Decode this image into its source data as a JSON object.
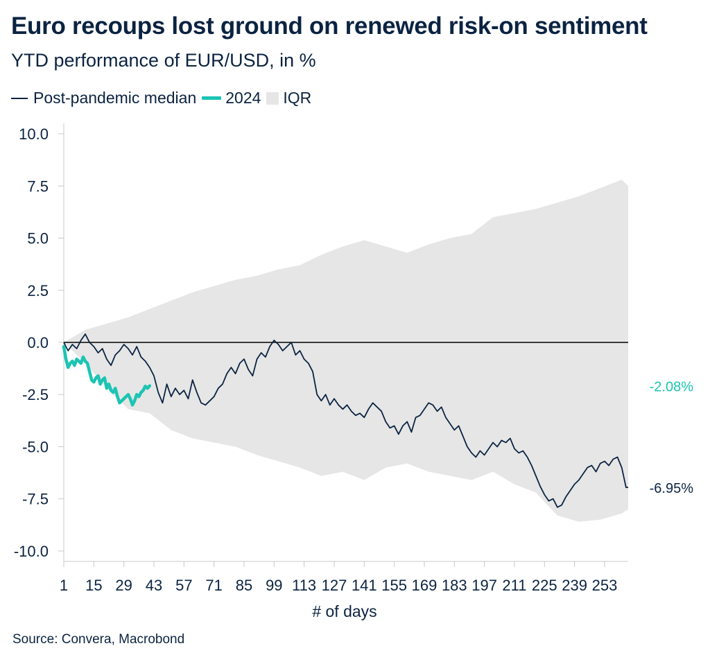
{
  "header": {
    "title": "Euro recoups lost ground on renewed risk-on sentiment",
    "subtitle": "YTD performance of EUR/USD, in %"
  },
  "legend": {
    "median_label": "Post-pandemic median",
    "ytd_label": "2024",
    "iqr_label": "IQR"
  },
  "footer": {
    "source": "Source: Convera, Macrobond"
  },
  "colors": {
    "median": "#0b2341",
    "ytd": "#1cc4b3",
    "iqr": "#e6e6e6",
    "axis": "#c8c8c8",
    "text": "#0b2341"
  },
  "chart_data": {
    "type": "line",
    "title": "Euro recoups lost ground on renewed risk-on sentiment",
    "subtitle": "YTD performance of EUR/USD, in %",
    "xlabel": "# of days",
    "ylabel": "",
    "xlim": [
      1,
      264
    ],
    "ylim": [
      -10.5,
      10.5
    ],
    "x_ticks": [
      1,
      15,
      29,
      43,
      57,
      71,
      85,
      99,
      113,
      127,
      141,
      155,
      169,
      183,
      197,
      211,
      225,
      239,
      253
    ],
    "y_ticks": [
      10.0,
      7.5,
      5.0,
      2.5,
      0.0,
      -2.5,
      -5.0,
      -7.5,
      -10.0
    ],
    "y_tick_labels": [
      "10.0",
      "7.5",
      "5.0",
      "2.5",
      "0.0",
      "-2.5",
      "-5.0",
      "-7.5",
      "-10.0"
    ],
    "zero_line": 0.0,
    "legend_position": "top-left",
    "series": [
      {
        "name": "Post-pandemic median",
        "x": [
          1,
          3,
          5,
          7,
          9,
          11,
          13,
          15,
          17,
          19,
          21,
          23,
          25,
          27,
          29,
          31,
          33,
          35,
          37,
          39,
          41,
          43,
          45,
          47,
          49,
          51,
          53,
          55,
          57,
          59,
          61,
          63,
          65,
          67,
          69,
          71,
          73,
          75,
          77,
          79,
          81,
          83,
          85,
          87,
          89,
          91,
          93,
          95,
          97,
          99,
          101,
          103,
          105,
          107,
          109,
          111,
          113,
          115,
          117,
          119,
          121,
          123,
          125,
          127,
          129,
          131,
          133,
          135,
          137,
          139,
          141,
          143,
          145,
          147,
          149,
          151,
          153,
          155,
          157,
          159,
          161,
          163,
          165,
          167,
          169,
          171,
          173,
          175,
          177,
          179,
          181,
          183,
          185,
          187,
          189,
          191,
          193,
          195,
          197,
          199,
          201,
          203,
          205,
          207,
          209,
          211,
          213,
          215,
          217,
          219,
          221,
          223,
          225,
          227,
          229,
          231,
          233,
          235,
          237,
          239,
          241,
          243,
          245,
          247,
          249,
          251,
          253,
          255,
          257,
          259,
          261,
          263,
          264
        ],
        "values": [
          0.0,
          -0.4,
          -0.1,
          -0.3,
          0.1,
          0.4,
          0.0,
          -0.2,
          -0.5,
          -0.3,
          -0.8,
          -1.1,
          -0.6,
          -0.4,
          -0.1,
          -0.3,
          -0.6,
          -0.2,
          -0.7,
          -0.9,
          -1.2,
          -1.6,
          -2.4,
          -2.9,
          -2.0,
          -2.6,
          -2.2,
          -2.5,
          -2.3,
          -2.7,
          -1.8,
          -2.4,
          -2.9,
          -3.0,
          -2.8,
          -2.6,
          -2.2,
          -2.0,
          -1.5,
          -1.2,
          -1.5,
          -1.0,
          -0.8,
          -1.3,
          -1.6,
          -0.8,
          -0.5,
          -0.7,
          -0.2,
          0.1,
          -0.1,
          -0.4,
          -0.2,
          0.0,
          -0.6,
          -0.4,
          -0.8,
          -1.0,
          -1.4,
          -2.5,
          -2.8,
          -2.5,
          -3.0,
          -2.7,
          -3.0,
          -3.2,
          -3.0,
          -3.3,
          -3.5,
          -3.4,
          -3.6,
          -3.2,
          -2.9,
          -3.1,
          -3.3,
          -3.8,
          -4.1,
          -4.0,
          -4.4,
          -4.0,
          -3.8,
          -4.3,
          -3.6,
          -3.5,
          -3.2,
          -2.9,
          -3.0,
          -3.3,
          -3.1,
          -3.6,
          -3.9,
          -4.2,
          -4.0,
          -4.5,
          -5.0,
          -5.3,
          -5.5,
          -5.2,
          -5.4,
          -5.1,
          -4.8,
          -5.0,
          -4.7,
          -4.8,
          -4.6,
          -5.1,
          -5.3,
          -5.2,
          -5.5,
          -5.9,
          -6.4,
          -6.9,
          -7.3,
          -7.6,
          -7.5,
          -7.9,
          -7.8,
          -7.4,
          -7.1,
          -6.8,
          -6.6,
          -6.3,
          -6.0,
          -5.9,
          -6.2,
          -5.8,
          -5.7,
          -5.9,
          -5.6,
          -5.5,
          -6.0,
          -6.95,
          -6.95
        ]
      },
      {
        "name": "2024",
        "x": [
          1,
          2,
          3,
          4,
          5,
          6,
          7,
          8,
          9,
          10,
          11,
          12,
          13,
          14,
          15,
          16,
          17,
          18,
          19,
          20,
          21,
          22,
          23,
          24,
          25,
          26,
          27,
          28,
          29,
          30,
          31,
          32,
          33,
          34,
          35,
          36,
          37,
          38,
          39,
          40,
          41
        ],
        "values": [
          -0.2,
          -0.8,
          -1.2,
          -1.0,
          -0.9,
          -1.1,
          -0.8,
          -0.9,
          -1.0,
          -0.7,
          -0.9,
          -1.0,
          -1.4,
          -1.8,
          -1.9,
          -1.7,
          -1.6,
          -2.0,
          -1.8,
          -1.7,
          -2.2,
          -2.0,
          -2.3,
          -2.4,
          -2.2,
          -2.6,
          -2.9,
          -2.8,
          -2.7,
          -2.6,
          -2.5,
          -2.7,
          -3.0,
          -2.8,
          -2.5,
          -2.6,
          -2.4,
          -2.3,
          -2.1,
          -2.2,
          -2.08
        ]
      },
      {
        "name": "IQR",
        "x": [
          1,
          11,
          21,
          31,
          41,
          51,
          61,
          71,
          81,
          91,
          101,
          111,
          121,
          131,
          141,
          151,
          161,
          171,
          181,
          191,
          201,
          211,
          221,
          231,
          241,
          251,
          261,
          264
        ],
        "upper": [
          0.0,
          0.6,
          0.9,
          1.2,
          1.6,
          2.0,
          2.4,
          2.7,
          3.0,
          3.2,
          3.5,
          3.7,
          4.2,
          4.6,
          4.9,
          4.6,
          4.3,
          4.7,
          5.0,
          5.2,
          6.0,
          6.2,
          6.4,
          6.7,
          7.0,
          7.4,
          7.8,
          7.5
        ],
        "lower": [
          0.0,
          -1.0,
          -2.2,
          -3.2,
          -3.4,
          -4.2,
          -4.6,
          -4.8,
          -5.0,
          -5.4,
          -5.7,
          -6.0,
          -6.4,
          -6.2,
          -6.6,
          -6.0,
          -5.8,
          -6.2,
          -6.4,
          -6.6,
          -6.2,
          -6.8,
          -7.2,
          -8.3,
          -8.6,
          -8.5,
          -8.2,
          -8.0
        ]
      }
    ],
    "end_labels": [
      {
        "series": "2024",
        "text": "-2.08%"
      },
      {
        "series": "Post-pandemic median",
        "text": "-6.95%"
      }
    ]
  }
}
